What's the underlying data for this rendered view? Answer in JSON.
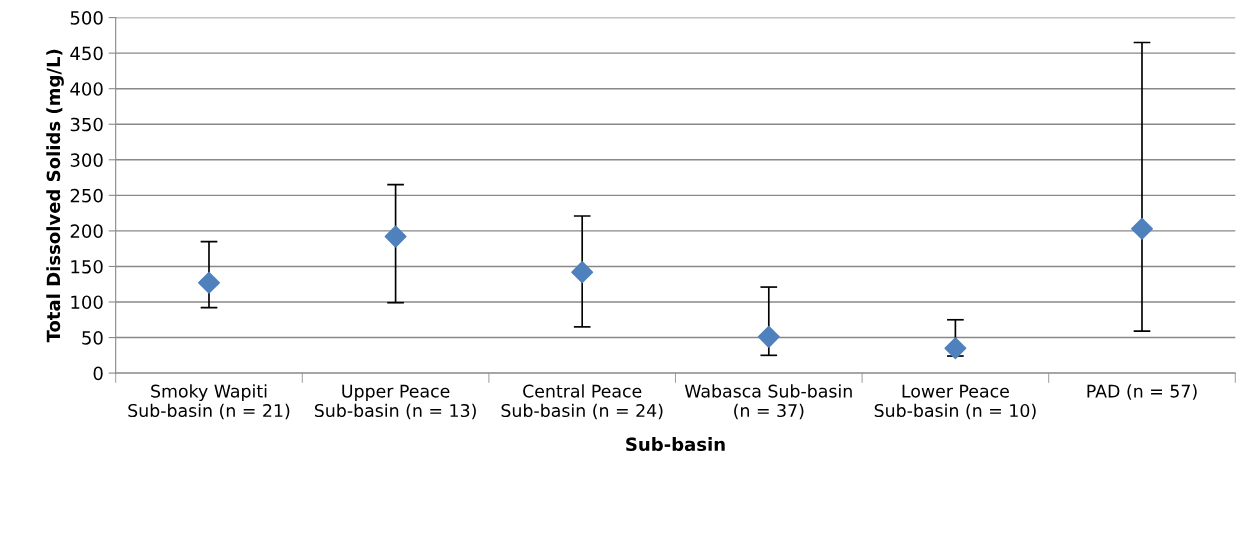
{
  "chart_data": {
    "type": "scatter",
    "xlabel": "Sub-basin",
    "ylabel": "Total Dissolved Solids (mg/L)",
    "categories": [
      "Smoky Wapiti Sub-basin (n = 21)",
      "Upper Peace Sub-basin (n = 13)",
      "Central Peace Sub-basin (n = 24)",
      "Wabasca Sub-basin (n = 37)",
      "Lower Peace Sub-basin (n = 10)",
      "PAD (n = 57)"
    ],
    "series": [
      {
        "color": "#4f81bd",
        "values": [
          127,
          192,
          142,
          51,
          35,
          203
        ],
        "errors": [
          [
            92,
            185
          ],
          [
            99,
            265
          ],
          [
            65,
            221
          ],
          [
            25,
            121
          ],
          [
            24,
            75
          ],
          [
            59,
            465
          ]
        ]
      }
    ],
    "marker": "diamond",
    "ylim": [
      0,
      500
    ],
    "yticks": [
      0,
      50,
      100,
      150,
      200,
      250,
      300,
      350,
      400,
      450,
      500
    ],
    "grid": "y"
  }
}
